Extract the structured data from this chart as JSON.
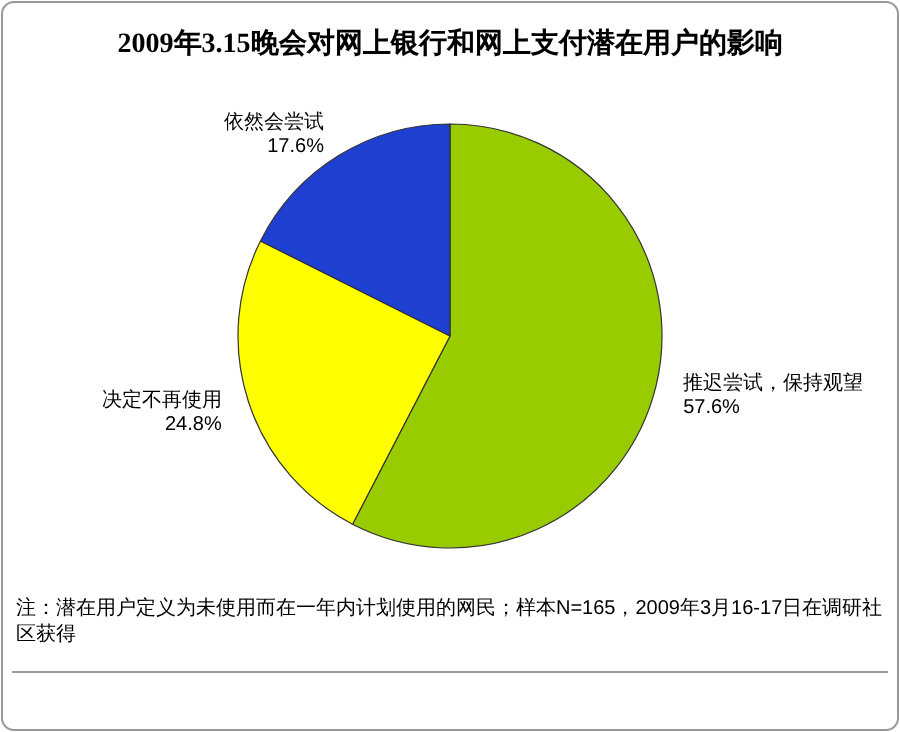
{
  "chart_data": {
    "type": "pie",
    "title": "2009年3.15晚会对网上银行和网上支付潜在用户的影响",
    "categories": [
      "推迟尝试，保持观望",
      "决定不再使用",
      "依然会尝试"
    ],
    "values": [
      57.6,
      24.8,
      17.6
    ],
    "colors": [
      "#99cc00",
      "#ffff00",
      "#1f3fd0"
    ],
    "value_labels": [
      "57.6%",
      "24.8%",
      "17.6%"
    ],
    "annotations": [
      "注：潜在用户定义为未使用而在一年内计划使用的网民；样本N=165，2009年3月16-17日在调研社区获得"
    ]
  }
}
